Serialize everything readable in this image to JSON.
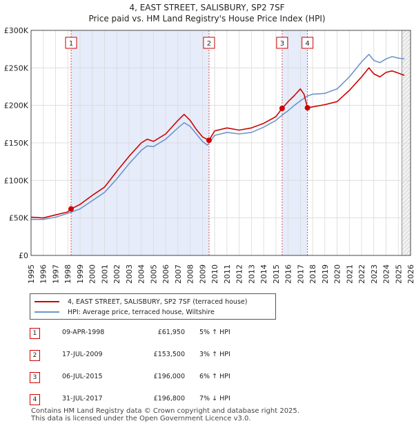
{
  "chart_data": {
    "type": "line",
    "title": "4, EAST STREET, SALISBURY, SP2 7SF",
    "subtitle": "Price paid vs. HM Land Registry's House Price Index (HPI)",
    "ylim": [
      0,
      300000
    ],
    "xlim": [
      1995,
      2026
    ],
    "y_ticks": [
      0,
      50000,
      100000,
      150000,
      200000,
      250000,
      300000
    ],
    "y_tick_labels": [
      "£0",
      "£50K",
      "£100K",
      "£150K",
      "£200K",
      "£250K",
      "£300K"
    ],
    "x_ticks": [
      1995,
      1996,
      1997,
      1998,
      1999,
      2000,
      2001,
      2002,
      2003,
      2004,
      2005,
      2006,
      2007,
      2008,
      2009,
      2010,
      2011,
      2012,
      2013,
      2014,
      2015,
      2016,
      2017,
      2018,
      2019,
      2020,
      2021,
      2022,
      2023,
      2024,
      2025,
      2026
    ],
    "x_tick_labels": [
      "1995",
      "1996",
      "1997",
      "1998",
      "1999",
      "2000",
      "2001",
      "2002",
      "2003",
      "2004",
      "2005",
      "2006",
      "2007",
      "2008",
      "2009",
      "2010",
      "2011",
      "2012",
      "2013",
      "2014",
      "2015",
      "2016",
      "2017",
      "2018",
      "2019",
      "2020",
      "2021",
      "2022",
      "2023",
      "2024",
      "2025",
      "2026"
    ],
    "shaded_periods": [
      [
        1998.27,
        2009.54
      ],
      [
        2015.51,
        2017.58
      ]
    ],
    "future_from": 2025.3,
    "series": [
      {
        "name": "4, EAST STREET, SALISBURY, SP2 7SF (terraced house)",
        "color": "#cc0000",
        "x": [
          1995.0,
          1996.0,
          1997.0,
          1998.0,
          1998.27,
          1999.0,
          2000.0,
          2001.0,
          2002.0,
          2003.0,
          2004.0,
          2004.5,
          2005.0,
          2006.0,
          2007.0,
          2007.5,
          2008.0,
          2008.5,
          2009.0,
          2009.54,
          2010.0,
          2011.0,
          2012.0,
          2013.0,
          2014.0,
          2015.0,
          2015.51,
          2016.0,
          2016.5,
          2017.0,
          2017.3,
          2017.58,
          2018.0,
          2019.0,
          2020.0,
          2021.0,
          2022.0,
          2022.6,
          2023.0,
          2023.5,
          2024.0,
          2024.5,
          2025.0,
          2025.5
        ],
        "y": [
          51000,
          50000,
          54000,
          58000,
          61950,
          68000,
          80000,
          91000,
          112000,
          132000,
          150000,
          155000,
          152000,
          162000,
          180000,
          188000,
          180000,
          168000,
          158000,
          153500,
          166000,
          170000,
          167000,
          170000,
          176000,
          185000,
          196000,
          205000,
          213000,
          222000,
          215000,
          196800,
          198000,
          201000,
          205000,
          220000,
          238000,
          250000,
          242000,
          238000,
          244000,
          246000,
          243000,
          240000
        ]
      },
      {
        "name": "HPI: Average price, terraced house, Wiltshire",
        "color": "#6a96c8",
        "x": [
          1995.0,
          1996.0,
          1997.0,
          1998.0,
          1999.0,
          2000.0,
          2001.0,
          2002.0,
          2003.0,
          2004.0,
          2004.5,
          2005.0,
          2006.0,
          2007.0,
          2007.5,
          2008.0,
          2008.5,
          2009.0,
          2009.4,
          2010.0,
          2011.0,
          2012.0,
          2013.0,
          2014.0,
          2015.0,
          2015.5,
          2016.0,
          2016.5,
          2017.0,
          2017.5,
          2018.0,
          2019.0,
          2020.0,
          2021.0,
          2022.0,
          2022.6,
          2023.0,
          2023.5,
          2024.0,
          2024.5,
          2025.0,
          2025.5
        ],
        "y": [
          48000,
          48000,
          51000,
          56000,
          62000,
          73000,
          84000,
          102000,
          122000,
          140000,
          146000,
          145000,
          155000,
          170000,
          177000,
          172000,
          162000,
          152000,
          147000,
          160000,
          164000,
          162000,
          164000,
          171000,
          180000,
          187000,
          193000,
          200000,
          206000,
          212000,
          215000,
          216000,
          222000,
          238000,
          258000,
          268000,
          260000,
          257000,
          262000,
          265000,
          263000,
          262000
        ]
      }
    ],
    "sales": [
      {
        "num": "1",
        "date": "09-APR-1998",
        "x": 1998.27,
        "price": "£61,950",
        "value": 61950,
        "hpi": "5% ↑ HPI"
      },
      {
        "num": "2",
        "date": "17-JUL-2009",
        "x": 2009.54,
        "price": "£153,500",
        "value": 153500,
        "hpi": "3% ↑ HPI"
      },
      {
        "num": "3",
        "date": "06-JUL-2015",
        "x": 2015.51,
        "price": "£196,000",
        "value": 196000,
        "hpi": "6% ↑ HPI"
      },
      {
        "num": "4",
        "date": "31-JUL-2017",
        "x": 2017.58,
        "price": "£196,800",
        "value": 196800,
        "hpi": "7% ↓ HPI"
      }
    ]
  },
  "footer": {
    "line1": "Contains HM Land Registry data © Crown copyright and database right 2025.",
    "line2": "This data is licensed under the Open Government Licence v3.0."
  }
}
